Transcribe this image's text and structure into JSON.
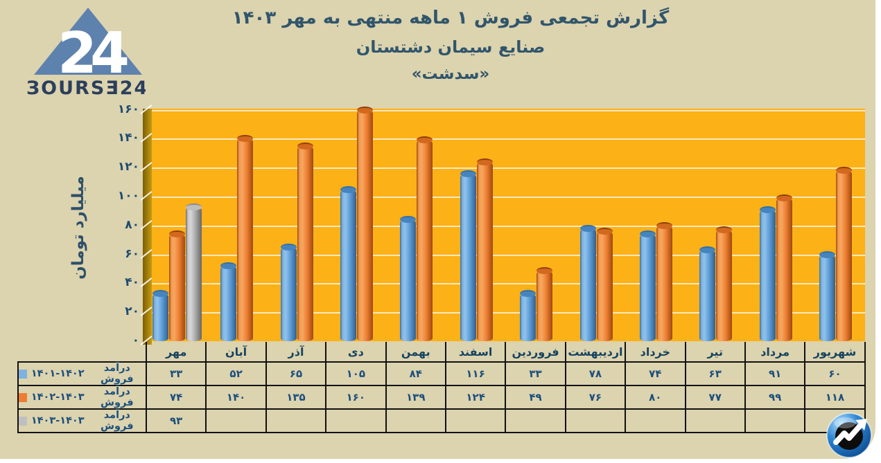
{
  "page": {
    "background": "#DCD3AF"
  },
  "logo": {
    "wordmark": "ЗOURSƎ24",
    "number": "24",
    "triangle_color": "#5E82AE",
    "text_color": "#2B3F5C"
  },
  "title": {
    "line1": "گزارش تجمعی فروش ۱ ماهه منتهی به مهر ۱۴۰۳",
    "line2": "صنایع سیمان دشتستان",
    "line3": "«سدشت»",
    "color": "#31566B"
  },
  "y_axis": {
    "label": "میلیارد تومان",
    "ticks": [
      0,
      20,
      40,
      60,
      80,
      100,
      120,
      140,
      160
    ],
    "tick_labels_fa": [
      "۰",
      "۲۰",
      "۴۰",
      "۶۰",
      "۸۰",
      "۱۰۰",
      "۱۲۰",
      "۱۴۰",
      "۱۶۰"
    ]
  },
  "plot": {
    "background": "#FCB117",
    "wall_dark": "#7C5F04",
    "wall_light": "#C59A12",
    "grid_color": "rgba(255,255,255,0.72)"
  },
  "table": {
    "months": [
      "مهر",
      "آبان",
      "آذر",
      "دی",
      "بهمن",
      "اسفند",
      "فروردین",
      "اردیبهشت",
      "خرداد",
      "تیر",
      "مرداد",
      "شهریور"
    ],
    "rows": [
      {
        "label": "درآمد فروش",
        "years": "۱۴۰۱-۱۴۰۲",
        "swatch": "#7FB2DE",
        "values": [
          "۳۳",
          "۵۲",
          "۶۵",
          "۱۰۵",
          "۸۴",
          "۱۱۶",
          "۳۳",
          "۷۸",
          "۷۴",
          "۶۳",
          "۹۱",
          "۶۰"
        ]
      },
      {
        "label": "درآمد فروش",
        "years": "۱۴۰۲-۱۴۰۳",
        "swatch": "#ED7D31",
        "values": [
          "۷۴",
          "۱۴۰",
          "۱۳۵",
          "۱۶۰",
          "۱۳۹",
          "۱۲۴",
          "۴۹",
          "۷۶",
          "۸۰",
          "۷۷",
          "۹۹",
          "۱۱۸"
        ]
      },
      {
        "label": "درآمد فروش",
        "years": "۱۴۰۳-۱۴۰۳",
        "swatch": "#BFBFBF",
        "values": [
          "۹۳",
          "",
          "",
          "",
          "",
          "",
          "",
          "",
          "",
          "",
          "",
          ""
        ]
      }
    ]
  },
  "chart_data": {
    "type": "bar",
    "title": "گزارش تجمعی فروش ۱ ماهه منتهی به مهر ۱۴۰۳ — صنایع سیمان دشتستان «سدشت»",
    "categories": [
      "مهر",
      "آبان",
      "آذر",
      "دی",
      "بهمن",
      "اسفند",
      "فروردین",
      "اردیبهشت",
      "خرداد",
      "تیر",
      "مرداد",
      "شهریور"
    ],
    "series": [
      {
        "name": "درآمد فروش ۱۴۰۱-۱۴۰۲",
        "color": "#5B9BD5",
        "values": [
          33,
          52,
          65,
          105,
          84,
          116,
          33,
          78,
          74,
          63,
          91,
          60
        ]
      },
      {
        "name": "درآمد فروش ۱۴۰۲-۱۴۰۳",
        "color": "#ED7D31",
        "values": [
          74,
          140,
          135,
          160,
          139,
          124,
          49,
          76,
          80,
          77,
          99,
          118
        ]
      },
      {
        "name": "درآمد فروش ۱۴۰۳-۱۴۰۳",
        "color": "#A6A6A6",
        "values": [
          93,
          null,
          null,
          null,
          null,
          null,
          null,
          null,
          null,
          null,
          null,
          null
        ]
      }
    ],
    "xlabel": "",
    "ylabel": "میلیارد تومان",
    "ylim": [
      0,
      160
    ],
    "ytick_step": 20,
    "grid": true,
    "bar_style": "3d-cylinder",
    "legend_position": "table-left"
  }
}
